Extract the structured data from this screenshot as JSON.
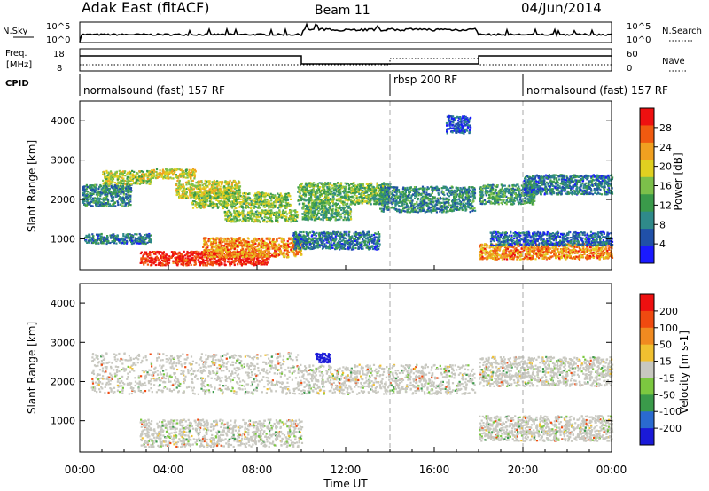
{
  "header": {
    "station": "Adak East (fitACF)",
    "beam": "Beam 11",
    "date": "04/Jun/2014"
  },
  "status_panels": {
    "nsky_label": "N.Sky",
    "nsky_ticks": [
      "10^5",
      "10^0"
    ],
    "nsearch_label": "N.Search",
    "nsearch_ticks": [
      "10^5",
      "10^0"
    ],
    "freq_label_1": "Freq.",
    "freq_label_2": "[MHz]",
    "freq_ticks": [
      "18",
      "8"
    ],
    "nave_label": "Nave",
    "nave_ticks": [
      "60",
      "0"
    ],
    "cpid_label": "CPID",
    "cpid_segments": [
      {
        "label": "normalsound (fast) 157 RF",
        "start_hour": 0,
        "end_hour": 14
      },
      {
        "label": "rbsp 200 RF",
        "start_hour": 14,
        "end_hour": 20
      },
      {
        "label": "normalsound (fast) 157 RF",
        "start_hour": 20,
        "end_hour": 24
      }
    ]
  },
  "chart_data": [
    {
      "type": "heatmap",
      "quantity": "Power",
      "ylabel": "Slant Range [km]",
      "xlabel": "Time UT",
      "ylim": [
        200,
        4500
      ],
      "xlim": [
        0,
        24
      ],
      "yticks": [
        "1000",
        "2000",
        "3000",
        "4000"
      ],
      "xticks": [
        "00:00",
        "04:00",
        "08:00",
        "12:00",
        "16:00",
        "20:00",
        "00:00"
      ],
      "colorbar_label": "Power [dB]",
      "colorbar_ticks": [
        "4",
        "8",
        "12",
        "16",
        "20",
        "24",
        "28"
      ],
      "colorbar_colors": [
        "#1a1aff",
        "#2050a8",
        "#2f8a8a",
        "#3a9a4a",
        "#7cc04a",
        "#e0d020",
        "#f0a020",
        "#f05a10",
        "#ee1010"
      ],
      "scatter_regions": [
        {
          "t0": 0.1,
          "t1": 2.3,
          "r0": 1850,
          "r1": 2400,
          "level": 0.3
        },
        {
          "t0": 1.0,
          "t1": 3.2,
          "r0": 2400,
          "r1": 2750,
          "level": 0.55
        },
        {
          "t0": 3.2,
          "t1": 5.2,
          "r0": 2550,
          "r1": 2800,
          "level": 0.6
        },
        {
          "t0": 4.3,
          "t1": 7.2,
          "r0": 2050,
          "r1": 2500,
          "level": 0.6
        },
        {
          "t0": 5.0,
          "t1": 9.5,
          "r0": 1800,
          "r1": 2200,
          "level": 0.5
        },
        {
          "t0": 6.5,
          "t1": 9.8,
          "r0": 1450,
          "r1": 1750,
          "level": 0.5
        },
        {
          "t0": 9.8,
          "t1": 14.0,
          "r0": 1900,
          "r1": 2450,
          "level": 0.45
        },
        {
          "t0": 10.0,
          "t1": 12.2,
          "r0": 1500,
          "r1": 1900,
          "level": 0.4
        },
        {
          "t0": 13.5,
          "t1": 17.8,
          "r0": 1700,
          "r1": 2350,
          "level": 0.3
        },
        {
          "t0": 2.7,
          "t1": 8.5,
          "r0": 350,
          "r1": 700,
          "level": 0.95
        },
        {
          "t0": 5.5,
          "t1": 10.0,
          "r0": 550,
          "r1": 1050,
          "level": 0.75
        },
        {
          "t0": 0.2,
          "t1": 3.2,
          "r0": 900,
          "r1": 1150,
          "level": 0.25
        },
        {
          "t0": 9.6,
          "t1": 13.5,
          "r0": 750,
          "r1": 1200,
          "level": 0.25
        },
        {
          "t0": 18.0,
          "t1": 24.0,
          "r0": 500,
          "r1": 900,
          "level": 0.75
        },
        {
          "t0": 18.5,
          "t1": 24.0,
          "r0": 850,
          "r1": 1200,
          "level": 0.2
        },
        {
          "t0": 18.0,
          "t1": 20.5,
          "r0": 1900,
          "r1": 2400,
          "level": 0.35
        },
        {
          "t0": 20.0,
          "t1": 24.0,
          "r0": 2150,
          "r1": 2650,
          "level": 0.25
        },
        {
          "t0": 16.5,
          "t1": 17.6,
          "r0": 3700,
          "r1": 4150,
          "level": 0.15
        }
      ]
    },
    {
      "type": "heatmap",
      "quantity": "Velocity",
      "ylabel": "Slant Range [km]",
      "xlabel": "Time UT",
      "ylim": [
        200,
        4500
      ],
      "xlim": [
        0,
        24
      ],
      "yticks": [
        "1000",
        "2000",
        "3000",
        "4000"
      ],
      "xticks": [
        "00:00",
        "04:00",
        "08:00",
        "12:00",
        "16:00",
        "20:00",
        "00:00"
      ],
      "colorbar_label": "Velocity [m s-1]",
      "colorbar_ticks": [
        "200",
        "100",
        "50",
        "15",
        "-15",
        "-50",
        "-100",
        "-200"
      ],
      "colorbar_colors": [
        "#1a1ad8",
        "#2a6ad0",
        "#3a9a4a",
        "#7cc840",
        "#c8c8c0",
        "#f0c030",
        "#f08a20",
        "#f04a10",
        "#ee1010"
      ],
      "scatter_regions": [
        {
          "t0": 0.5,
          "t1": 9.8,
          "r0": 1700,
          "r1": 2750,
          "level": 0.5
        },
        {
          "t0": 9.8,
          "t1": 17.8,
          "r0": 1700,
          "r1": 2450,
          "level": 0.5
        },
        {
          "t0": 2.7,
          "t1": 10.0,
          "r0": 350,
          "r1": 1050,
          "level": 0.5
        },
        {
          "t0": 18.0,
          "t1": 24.0,
          "r0": 500,
          "r1": 1150,
          "level": 0.5
        },
        {
          "t0": 18.0,
          "t1": 24.0,
          "r0": 1900,
          "r1": 2650,
          "level": 0.5
        },
        {
          "t0": 10.6,
          "t1": 11.3,
          "r0": 2500,
          "r1": 2750,
          "level": 0.0
        }
      ]
    }
  ]
}
